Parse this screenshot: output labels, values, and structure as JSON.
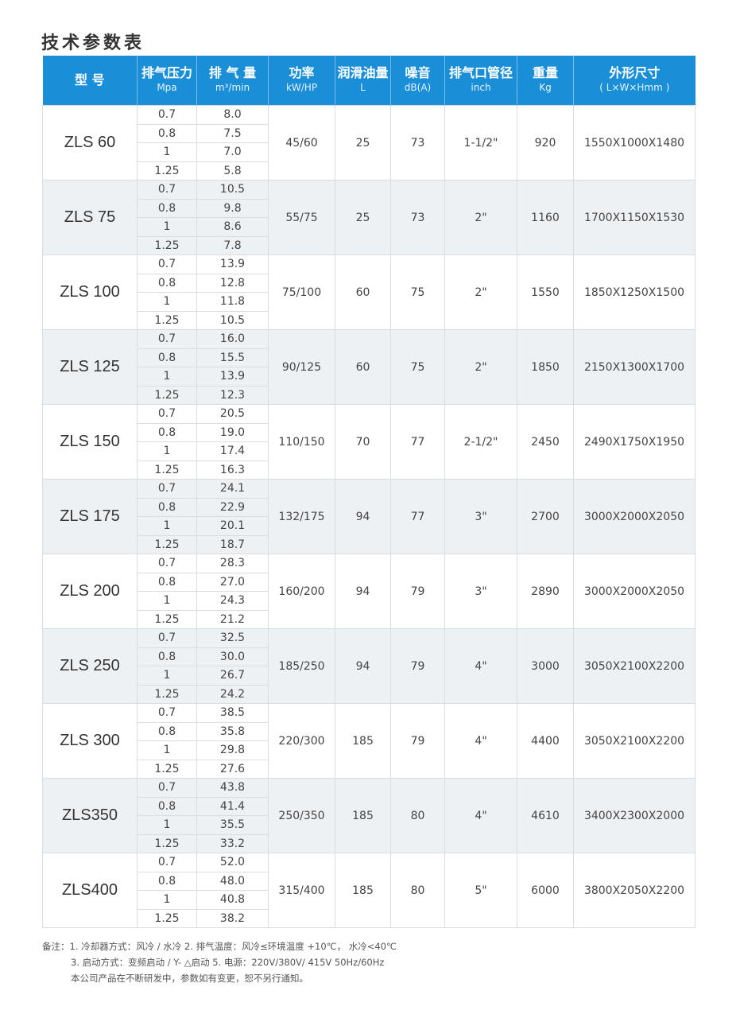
{
  "title": "技术参数表",
  "colors": {
    "header": "#1b8ed8",
    "alt_row": "#eef1f4"
  },
  "headers": [
    {
      "label": "型  号",
      "sub": ""
    },
    {
      "label": "排气压力",
      "sub": "Mpa"
    },
    {
      "label": "排 气 量",
      "sub": "m³/min"
    },
    {
      "label": "功率",
      "sub": "kW/HP"
    },
    {
      "label": "润滑油量",
      "sub": "L"
    },
    {
      "label": "噪音",
      "sub": "dB(A)"
    },
    {
      "label": "排气口管径",
      "sub": "inch"
    },
    {
      "label": "重量",
      "sub": "Kg"
    },
    {
      "label": "外形尺寸",
      "sub": "( L×W×Hmm )"
    }
  ],
  "pressures": [
    "0.7",
    "0.8",
    "1",
    "1.25"
  ],
  "rows": [
    {
      "model": "ZLS 60",
      "flow": [
        "8.0",
        "7.5",
        "7.0",
        "5.8"
      ],
      "power": "45/60",
      "oil": "25",
      "noise": "73",
      "outlet": "1-1/2\"",
      "weight": "920",
      "size": "1550X1000X1480"
    },
    {
      "model": "ZLS 75",
      "flow": [
        "10.5",
        "9.8",
        "8.6",
        "7.8"
      ],
      "power": "55/75",
      "oil": "25",
      "noise": "73",
      "outlet": "2\"",
      "weight": "1160",
      "size": "1700X1150X1530"
    },
    {
      "model": "ZLS 100",
      "flow": [
        "13.9",
        "12.8",
        "11.8",
        "10.5"
      ],
      "power": "75/100",
      "oil": "60",
      "noise": "75",
      "outlet": "2\"",
      "weight": "1550",
      "size": "1850X1250X1500"
    },
    {
      "model": "ZLS 125",
      "flow": [
        "16.0",
        "15.5",
        "13.9",
        "12.3"
      ],
      "power": "90/125",
      "oil": "60",
      "noise": "75",
      "outlet": "2\"",
      "weight": "1850",
      "size": "2150X1300X1700"
    },
    {
      "model": "ZLS 150",
      "flow": [
        "20.5",
        "19.0",
        "17.4",
        "16.3"
      ],
      "power": "110/150",
      "oil": "70",
      "noise": "77",
      "outlet": "2-1/2\"",
      "weight": "2450",
      "size": "2490X1750X1950"
    },
    {
      "model": "ZLS 175",
      "flow": [
        "24.1",
        "22.9",
        "20.1",
        "18.7"
      ],
      "power": "132/175",
      "oil": "94",
      "noise": "77",
      "outlet": "3\"",
      "weight": "2700",
      "size": "3000X2000X2050"
    },
    {
      "model": "ZLS 200",
      "flow": [
        "28.3",
        "27.0",
        "24.3",
        "21.2"
      ],
      "power": "160/200",
      "oil": "94",
      "noise": "79",
      "outlet": "3\"",
      "weight": "2890",
      "size": "3000X2000X2050"
    },
    {
      "model": "ZLS 250",
      "flow": [
        "32.5",
        "30.0",
        "26.7",
        "24.2"
      ],
      "power": "185/250",
      "oil": "94",
      "noise": "79",
      "outlet": "4\"",
      "weight": "3000",
      "size": "3050X2100X2200"
    },
    {
      "model": "ZLS 300",
      "flow": [
        "38.5",
        "35.8",
        "29.8",
        "27.6"
      ],
      "power": "220/300",
      "oil": "185",
      "noise": "79",
      "outlet": "4\"",
      "weight": "4400",
      "size": "3050X2100X2200"
    },
    {
      "model": "ZLS350",
      "flow": [
        "43.8",
        "41.4",
        "35.5",
        "33.2"
      ],
      "power": "250/350",
      "oil": "185",
      "noise": "80",
      "outlet": "4\"",
      "weight": "4610",
      "size": "3400X2300X2000"
    },
    {
      "model": "ZLS400",
      "flow": [
        "52.0",
        "48.0",
        "40.8",
        "38.2"
      ],
      "power": "315/400",
      "oil": "185",
      "noise": "80",
      "outlet": "5\"",
      "weight": "6000",
      "size": "3800X2050X2200"
    }
  ],
  "notes": [
    "备注：1. 冷却器方式：风冷 / 水冷    2. 排气温度：风冷≤环境温度 +10℃， 水冷<40℃",
    "3. 启动方式：变频启动 / Y- △启动      5. 电源：220V/380V/ 415V  50Hz/60Hz",
    "本公司产品在不断研发中，参数如有变更，恕不另行通知。"
  ]
}
